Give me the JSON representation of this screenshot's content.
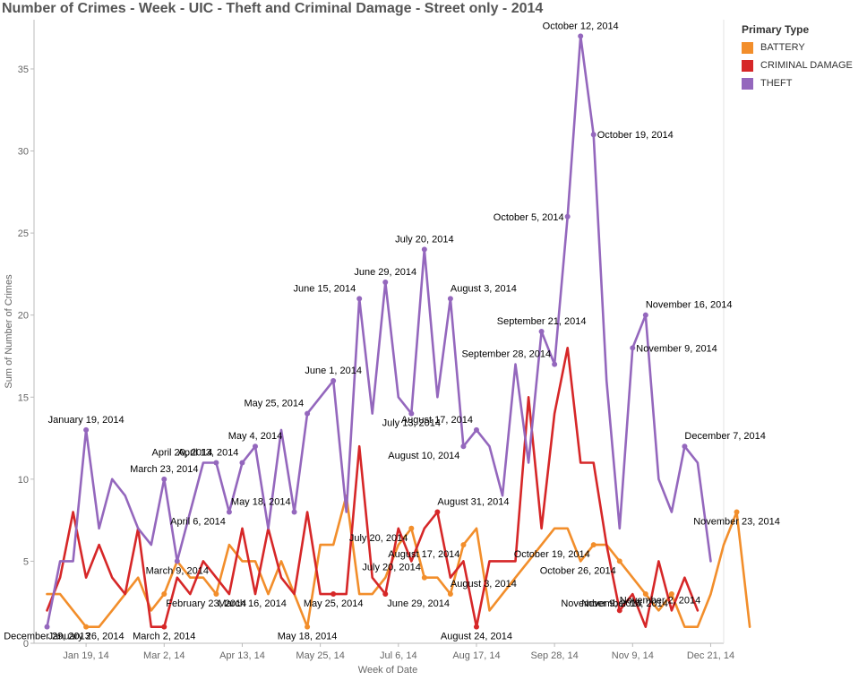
{
  "title": "Number of Crimes - Week - UIC - Theft and Criminal Damage - Street only - 2014",
  "legend": {
    "title": "Primary Type",
    "items": [
      {
        "label": "BATTERY",
        "color": "#f28e2b"
      },
      {
        "label": "CRIMINAL DAMAGE",
        "color": "#d62728"
      },
      {
        "label": "THEFT",
        "color": "#9467bd"
      }
    ]
  },
  "chart_data": {
    "type": "line",
    "title": "Number of Crimes - Week - UIC - Theft and Criminal Damage - Street only - 2014",
    "xlabel": "Week of Date",
    "ylabel": "Sum of Number of Crimes",
    "ylim": [
      0,
      38
    ],
    "yticks": [
      0,
      5,
      10,
      15,
      20,
      25,
      30,
      35
    ],
    "xlim": [
      "2013-12-22",
      "2014-12-28"
    ],
    "xticks": [
      {
        "date": "2014-01-19",
        "label": "Jan 19, 14"
      },
      {
        "date": "2014-03-02",
        "label": "Mar 2, 14"
      },
      {
        "date": "2014-04-13",
        "label": "Apr 13, 14"
      },
      {
        "date": "2014-05-25",
        "label": "May 25, 14"
      },
      {
        "date": "2014-07-06",
        "label": "Jul 6, 14"
      },
      {
        "date": "2014-08-17",
        "label": "Aug 17, 14"
      },
      {
        "date": "2014-09-28",
        "label": "Sep 28, 14"
      },
      {
        "date": "2014-11-09",
        "label": "Nov 9, 14"
      },
      {
        "date": "2014-12-21",
        "label": "Dec 21, 14"
      }
    ],
    "grid": false,
    "legend_position": "top-right",
    "x_start": "2013-12-29",
    "series": [
      {
        "name": "BATTERY",
        "color": "#f28e2b",
        "values": [
          3,
          3,
          2,
          1,
          1,
          2,
          3,
          4,
          2,
          3,
          5,
          4,
          4,
          3,
          6,
          5,
          5,
          3,
          5,
          3,
          1,
          6,
          6,
          9,
          3,
          3,
          4,
          6,
          7,
          4,
          4,
          3,
          6,
          7,
          2,
          3,
          4,
          5,
          6,
          7,
          7,
          5,
          6,
          6,
          5,
          4,
          3,
          2,
          3,
          1,
          1,
          3,
          6,
          8,
          1
        ]
      },
      {
        "name": "CRIMINAL DAMAGE",
        "color": "#d62728",
        "values": [
          2,
          4,
          8,
          4,
          6,
          4,
          3,
          7,
          1,
          1,
          4,
          3,
          5,
          4,
          3,
          7,
          3,
          7,
          4,
          3,
          8,
          3,
          3,
          3,
          12,
          4,
          3,
          7,
          5,
          7,
          8,
          4,
          5,
          1,
          5,
          5,
          5,
          15,
          7,
          14,
          18,
          11,
          11,
          6,
          2,
          3,
          1,
          5,
          2,
          4,
          2
        ]
      },
      {
        "name": "THEFT",
        "color": "#9467bd",
        "values": [
          1,
          5,
          5,
          13,
          7,
          10,
          9,
          7,
          6,
          10,
          5,
          8,
          11,
          11,
          8,
          11,
          12,
          7,
          13,
          8,
          14,
          15,
          16,
          8,
          21,
          14,
          22,
          15,
          14,
          24,
          15,
          21,
          12,
          13,
          12,
          9,
          17,
          11,
          19,
          17,
          26,
          37,
          31,
          16,
          7,
          18,
          20,
          10,
          8,
          12,
          11,
          5
        ]
      }
    ],
    "annotations": [
      {
        "series": "THEFT",
        "index": 0,
        "text": "December 29, 2013",
        "pos": "bottom"
      },
      {
        "series": "THEFT",
        "index": 3,
        "text": "January 19, 2014",
        "pos": "top"
      },
      {
        "series": "THEFT",
        "index": 9,
        "text": "March 23, 2014",
        "pos": "top"
      },
      {
        "series": "THEFT",
        "index": 10,
        "text": "March 9, 2014",
        "pos": "below"
      },
      {
        "series": "THEFT",
        "index": 13,
        "text": "April 20, 2014",
        "pos": "above-left"
      },
      {
        "series": "THEFT",
        "index": 15,
        "text": "April 13, 2014",
        "pos": "above-left"
      },
      {
        "series": "THEFT",
        "index": 14,
        "text": "April 6, 2014",
        "pos": "below-left"
      },
      {
        "series": "THEFT",
        "index": 16,
        "text": "May 4, 2014",
        "pos": "top"
      },
      {
        "series": "THEFT",
        "index": 19,
        "text": "May 18, 2014",
        "pos": "above-left"
      },
      {
        "series": "THEFT",
        "index": 20,
        "text": "May 25, 2014",
        "pos": "above-left"
      },
      {
        "series": "THEFT",
        "index": 22,
        "text": "June 1, 2014",
        "pos": "top"
      },
      {
        "series": "THEFT",
        "index": 24,
        "text": "June 15, 2014",
        "pos": "above-left"
      },
      {
        "series": "THEFT",
        "index": 26,
        "text": "June 29, 2014",
        "pos": "top"
      },
      {
        "series": "THEFT",
        "index": 29,
        "text": "July 20, 2014",
        "pos": "top"
      },
      {
        "series": "THEFT",
        "index": 28,
        "text": "July 13, 2014",
        "pos": "below"
      },
      {
        "series": "THEFT",
        "index": 31,
        "text": "August 3, 2014",
        "pos": "above-right"
      },
      {
        "series": "THEFT",
        "index": 33,
        "text": "August 17, 2014",
        "pos": "above-left"
      },
      {
        "series": "THEFT",
        "index": 32,
        "text": "August 10, 2014",
        "pos": "below-left"
      },
      {
        "series": "THEFT",
        "index": 38,
        "text": "September 21, 2014",
        "pos": "top"
      },
      {
        "series": "THEFT",
        "index": 39,
        "text": "September 28, 2014",
        "pos": "above-left"
      },
      {
        "series": "THEFT",
        "index": 40,
        "text": "October 5, 2014",
        "pos": "left"
      },
      {
        "series": "THEFT",
        "index": 41,
        "text": "October 12, 2014",
        "pos": "top"
      },
      {
        "series": "THEFT",
        "index": 42,
        "text": "October 19, 2014",
        "pos": "right"
      },
      {
        "series": "THEFT",
        "index": 45,
        "text": "November 9, 2014",
        "pos": "right"
      },
      {
        "series": "THEFT",
        "index": 46,
        "text": "November 16, 2014",
        "pos": "above-right"
      },
      {
        "series": "THEFT",
        "index": 49,
        "text": "December 7, 2014",
        "pos": "above-right"
      },
      {
        "series": "BATTERY",
        "index": 3,
        "text": "January 26, 2014",
        "pos": "below"
      },
      {
        "series": "BATTERY",
        "index": 9,
        "text": "February 23, 2014",
        "pos": "below-right"
      },
      {
        "series": "CRIMINAL DAMAGE",
        "index": 9,
        "text": "March 2, 2014",
        "pos": "bottom"
      },
      {
        "series": "BATTERY",
        "index": 13,
        "text": "March 16, 2014",
        "pos": "below-right"
      },
      {
        "series": "BATTERY",
        "index": 20,
        "text": "May 18, 2014",
        "pos": "bottom"
      },
      {
        "series": "CRIMINAL DAMAGE",
        "index": 22,
        "text": "May 25, 2014",
        "pos": "below"
      },
      {
        "series": "CRIMINAL DAMAGE",
        "index": 26,
        "text": "June 29, 2014",
        "pos": "below-right"
      },
      {
        "series": "BATTERY",
        "index": 29,
        "text": "July 20, 2014",
        "pos": "above-left"
      },
      {
        "series": "BATTERY",
        "index": 28,
        "text": "July 20, 2014",
        "pos": "below-left"
      },
      {
        "series": "CRIMINAL DAMAGE",
        "index": 30,
        "text": "August 31, 2014",
        "pos": "above-right"
      },
      {
        "series": "BATTERY",
        "index": 31,
        "text": "August 3, 2014",
        "pos": "above-right"
      },
      {
        "series": "BATTERY",
        "index": 32,
        "text": "August 17, 2014",
        "pos": "below-left"
      },
      {
        "series": "CRIMINAL DAMAGE",
        "index": 33,
        "text": "August 24, 2014",
        "pos": "bottom"
      },
      {
        "series": "CRIMINAL DAMAGE",
        "index": 44,
        "text": "November 2, 2014",
        "pos": "above-right"
      },
      {
        "series": "BATTERY",
        "index": 42,
        "text": "October 19, 2014",
        "pos": "below-left"
      },
      {
        "series": "BATTERY",
        "index": 44,
        "text": "October 26, 2014",
        "pos": "below-left"
      },
      {
        "series": "BATTERY",
        "index": 46,
        "text": "November 9, 2014",
        "pos": "below-left"
      },
      {
        "series": "BATTERY",
        "index": 48,
        "text": "November 16, 2014",
        "pos": "bottom-left"
      },
      {
        "series": "BATTERY",
        "index": 53,
        "text": "November 23, 2014",
        "pos": "bottom"
      }
    ]
  }
}
